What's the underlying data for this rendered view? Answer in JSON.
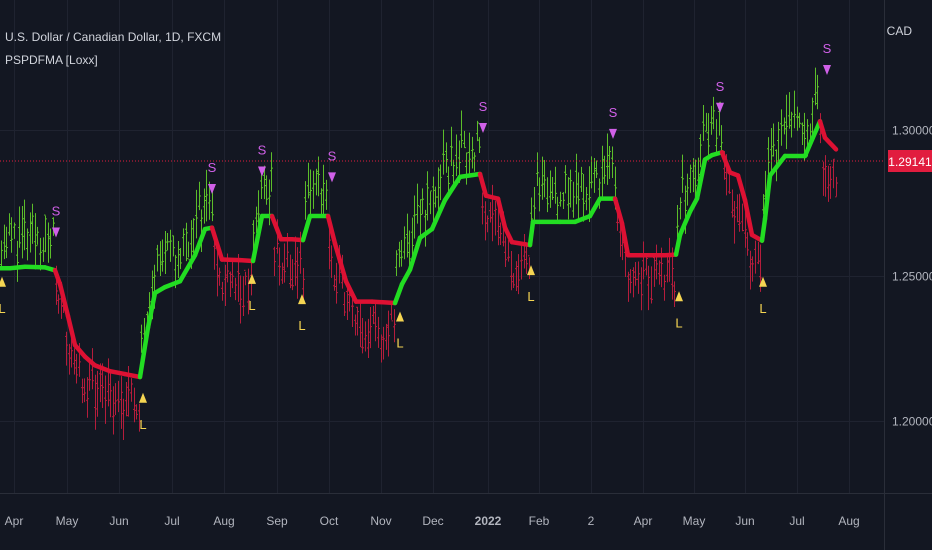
{
  "header": {
    "symbol_title": "U.S. Dollar / Canadian Dollar, 1D, FXCM",
    "indicator_title": "PSPDFMA [Loxx]",
    "currency": "CAD"
  },
  "colors": {
    "background": "#131722",
    "grid": "#1f2330",
    "up": "#22dd22",
    "down": "#dd1133",
    "up_bar": "#5bbd2a",
    "down_bar": "#b51d3c",
    "short_signal": "#d060e8",
    "long_signal": "#f5d552",
    "price_label_bg": "#e11d3f",
    "axis_text": "#b2b5be"
  },
  "chart_data": {
    "type": "line",
    "title": "U.S. Dollar / Canadian Dollar, 1D, FXCM",
    "indicator": "PSPDFMA [Loxx]",
    "ylim": [
      1.175,
      1.345
    ],
    "y_ticks": [
      "1.20000",
      "1.25000",
      "1.30000"
    ],
    "y_tick_values": [
      1.2,
      1.25,
      1.3
    ],
    "last_price_label": "1.29141",
    "last_price": 1.29141,
    "x_ticks": [
      "Apr",
      "May",
      "Jun",
      "Jul",
      "Aug",
      "Sep",
      "Oct",
      "Nov",
      "Dec",
      "2022",
      "Feb",
      "2",
      "Apr",
      "May",
      "Jun",
      "Jul",
      "Aug"
    ],
    "grid": true,
    "series": [
      {
        "name": "PSPDFMA",
        "points": [
          [
            0,
            1.2525,
            "up"
          ],
          [
            10,
            1.2525,
            "up"
          ],
          [
            25,
            1.253,
            "up"
          ],
          [
            45,
            1.2528,
            "up"
          ],
          [
            55,
            1.2518,
            "up"
          ],
          [
            60,
            1.247,
            "down"
          ],
          [
            68,
            1.236,
            "down"
          ],
          [
            75,
            1.226,
            "down"
          ],
          [
            85,
            1.222,
            "down"
          ],
          [
            95,
            1.219,
            "down"
          ],
          [
            110,
            1.217,
            "down"
          ],
          [
            125,
            1.216,
            "down"
          ],
          [
            140,
            1.215,
            "down"
          ],
          [
            148,
            1.232,
            "up"
          ],
          [
            155,
            1.244,
            "up"
          ],
          [
            165,
            1.246,
            "up"
          ],
          [
            180,
            1.248,
            "up"
          ],
          [
            195,
            1.257,
            "up"
          ],
          [
            205,
            1.266,
            "up"
          ],
          [
            212,
            1.2665,
            "up"
          ],
          [
            222,
            1.2555,
            "down"
          ],
          [
            240,
            1.2553,
            "down"
          ],
          [
            253,
            1.255,
            "down"
          ],
          [
            262,
            1.2705,
            "up"
          ],
          [
            272,
            1.2705,
            "up"
          ],
          [
            281,
            1.2625,
            "down"
          ],
          [
            292,
            1.2625,
            "down"
          ],
          [
            303,
            1.2622,
            "down"
          ],
          [
            310,
            1.2705,
            "up"
          ],
          [
            328,
            1.2705,
            "up"
          ],
          [
            335,
            1.261,
            "down"
          ],
          [
            346,
            1.248,
            "down"
          ],
          [
            356,
            1.241,
            "down"
          ],
          [
            372,
            1.241,
            "down"
          ],
          [
            395,
            1.2405,
            "down"
          ],
          [
            402,
            1.247,
            "up"
          ],
          [
            410,
            1.252,
            "up"
          ],
          [
            420,
            1.263,
            "up"
          ],
          [
            432,
            1.266,
            "up"
          ],
          [
            445,
            1.276,
            "up"
          ],
          [
            460,
            1.284,
            "up"
          ],
          [
            480,
            1.285,
            "up"
          ],
          [
            486,
            1.2775,
            "down"
          ],
          [
            498,
            1.2765,
            "down"
          ],
          [
            505,
            1.2665,
            "down"
          ],
          [
            512,
            1.2615,
            "down"
          ],
          [
            530,
            1.2605,
            "down"
          ],
          [
            533,
            1.2685,
            "up"
          ],
          [
            560,
            1.2685,
            "up"
          ],
          [
            575,
            1.2685,
            "up"
          ],
          [
            590,
            1.2705,
            "up"
          ],
          [
            600,
            1.2765,
            "up"
          ],
          [
            615,
            1.2765,
            "up"
          ],
          [
            622,
            1.268,
            "down"
          ],
          [
            628,
            1.257,
            "down"
          ],
          [
            640,
            1.257,
            "down"
          ],
          [
            665,
            1.257,
            "down"
          ],
          [
            676,
            1.2572,
            "down"
          ],
          [
            680,
            1.264,
            "up"
          ],
          [
            690,
            1.272,
            "up"
          ],
          [
            697,
            1.2765,
            "up"
          ],
          [
            705,
            1.29,
            "up"
          ],
          [
            712,
            1.2915,
            "up"
          ],
          [
            722,
            1.2925,
            "up"
          ],
          [
            730,
            1.2855,
            "down"
          ],
          [
            738,
            1.2845,
            "down"
          ],
          [
            745,
            1.276,
            "down"
          ],
          [
            752,
            1.264,
            "down"
          ],
          [
            762,
            1.262,
            "down"
          ],
          [
            765,
            1.2695,
            "up"
          ],
          [
            770,
            1.2845,
            "up"
          ],
          [
            785,
            1.2912,
            "up"
          ],
          [
            805,
            1.2912,
            "up"
          ],
          [
            820,
            1.3032,
            "up"
          ],
          [
            825,
            1.2975,
            "down"
          ],
          [
            836,
            1.2935,
            "down"
          ]
        ]
      }
    ],
    "signals": [
      {
        "type": "S",
        "x": 56,
        "price": 1.2645
      },
      {
        "type": "L",
        "x": 2,
        "price": 1.2475
      },
      {
        "type": "L",
        "x": 143,
        "price": 1.2075
      },
      {
        "type": "S",
        "x": 212,
        "price": 1.2795
      },
      {
        "type": "L",
        "x": 252,
        "price": 1.2485
      },
      {
        "type": "S",
        "x": 262,
        "price": 1.2855
      },
      {
        "type": "L",
        "x": 302,
        "price": 1.2415
      },
      {
        "type": "S",
        "x": 332,
        "price": 1.2835
      },
      {
        "type": "L",
        "x": 400,
        "price": 1.2355
      },
      {
        "type": "S",
        "x": 483,
        "price": 1.3005
      },
      {
        "type": "L",
        "x": 531,
        "price": 1.2515
      },
      {
        "type": "S",
        "x": 613,
        "price": 1.2985
      },
      {
        "type": "L",
        "x": 679,
        "price": 1.2425
      },
      {
        "type": "S",
        "x": 720,
        "price": 1.3075
      },
      {
        "type": "L",
        "x": 763,
        "price": 1.2475
      },
      {
        "type": "S",
        "x": 827,
        "price": 1.3205
      }
    ]
  }
}
